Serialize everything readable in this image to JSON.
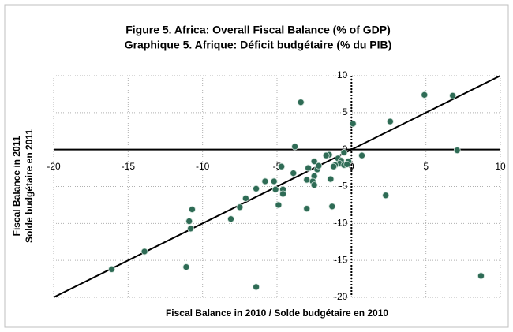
{
  "chart_data": {
    "type": "scatter",
    "title": "Figure 5. Africa: Overall Fiscal Balance (% of GDP)",
    "subtitle": "Graphique 5. Afrique: Déficit budgétaire (% du PIB)",
    "x_label": "Fiscal Balance in 2010 / Solde budgétaire en 2010",
    "y_label": [
      "Fiscal Balance in 2011",
      "Solde budgétaire en 2011"
    ],
    "color": "#2e6b55",
    "grid": true,
    "xlim": [
      -20,
      10
    ],
    "ylim": [
      -20,
      10
    ],
    "xticks": [
      -20,
      -15,
      -10,
      -5,
      0,
      5,
      10
    ],
    "yticks": [
      -20,
      -15,
      -10,
      -5,
      0,
      5,
      10
    ],
    "x": [
      4.9,
      6.8,
      2.6,
      0.1,
      -3.4,
      -3.8,
      7.1,
      0.7,
      -0.5,
      -1.5,
      -1.7,
      -0.2,
      -0.9,
      -0.7,
      -0.8,
      -0.5,
      -1.1,
      -0.3,
      -2.5,
      -2.3,
      -2.9,
      -2.2,
      -1.2,
      -1.4,
      -2.5,
      -2.6,
      -3.0,
      -3.9,
      -2.5,
      -4.7,
      -4.6,
      -4.6,
      -5.2,
      -5.1,
      -5.8,
      -6.4,
      -4.9,
      -3.0,
      -1.3,
      2.3,
      -7.1,
      -7.5,
      -8.1,
      -10.7,
      -10.9,
      -10.8,
      -13.9,
      -16.1,
      -11.1,
      -6.4,
      8.7
    ],
    "values": [
      7.4,
      7.3,
      3.8,
      3.5,
      6.4,
      0.4,
      -0.1,
      -0.8,
      -0.4,
      -0.7,
      -0.8,
      -1.6,
      -1.2,
      -1.5,
      -1.9,
      -2.1,
      -2.1,
      -2.0,
      -1.6,
      -2.7,
      -2.5,
      -2.2,
      -2.3,
      -4.0,
      -3.6,
      -4.3,
      -4.1,
      -3.2,
      -4.8,
      -2.3,
      -5.4,
      -6.0,
      -4.3,
      -5.4,
      -4.3,
      -5.3,
      -7.5,
      -8.0,
      -7.7,
      -6.2,
      -6.6,
      -7.8,
      -9.4,
      -8.1,
      -9.7,
      -10.7,
      -13.8,
      -16.2,
      -15.9,
      -18.6,
      -17.1
    ]
  }
}
